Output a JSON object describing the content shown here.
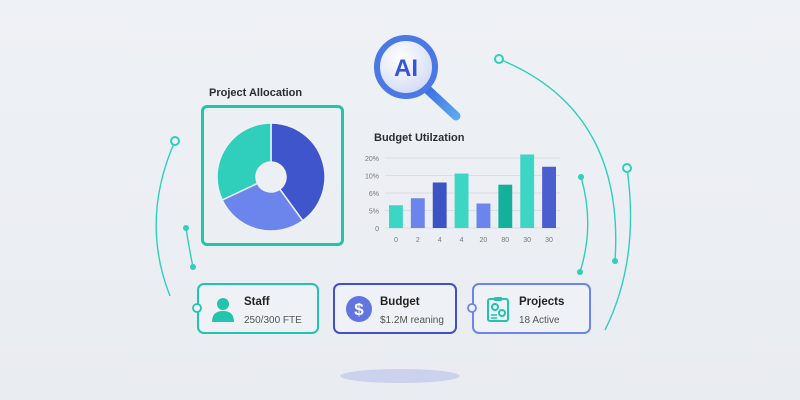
{
  "magnifier": {
    "text": "AI",
    "icon": "magnifying-glass-icon"
  },
  "allocation": {
    "title": "Project Allocation",
    "segments": [
      {
        "value": 40,
        "color": "#3f55cc"
      },
      {
        "value": 28,
        "color": "#6b85ec"
      },
      {
        "value": 32,
        "color": "#2fcfbc"
      }
    ]
  },
  "chart_data": {
    "type": "bar",
    "title": "Budget Utilzation",
    "y_ticks": [
      "0",
      "5%",
      "6%",
      "10%",
      "20%"
    ],
    "categories": [
      "0",
      "2",
      "4",
      "4",
      "20",
      "80",
      "30",
      "30"
    ],
    "values": [
      5.3,
      5.7,
      8.4,
      11.1,
      5.4,
      7.9,
      22,
      15
    ],
    "colors": [
      "#3dd6c4",
      "#6b85ec",
      "#3d52c4",
      "#3dd6c4",
      "#6b85ec",
      "#14b09c",
      "#3dd6c4",
      "#4a5ed0"
    ],
    "grid": true
  },
  "cards": [
    {
      "label": "Staff",
      "value": "250/300 FTE",
      "icon": "person-icon",
      "color": "#22c4ad"
    },
    {
      "label": "Budget",
      "value": "$1.2M reaning",
      "icon": "dollar-icon",
      "color": "#4050c8"
    },
    {
      "label": "Projects",
      "value": "18 Active",
      "icon": "clipboard-gears-icon",
      "color": "#6b85ec"
    }
  ],
  "colors": {
    "teal": "#22c4ad",
    "blue": "#6b85ec",
    "dark_blue": "#3d52c4"
  }
}
